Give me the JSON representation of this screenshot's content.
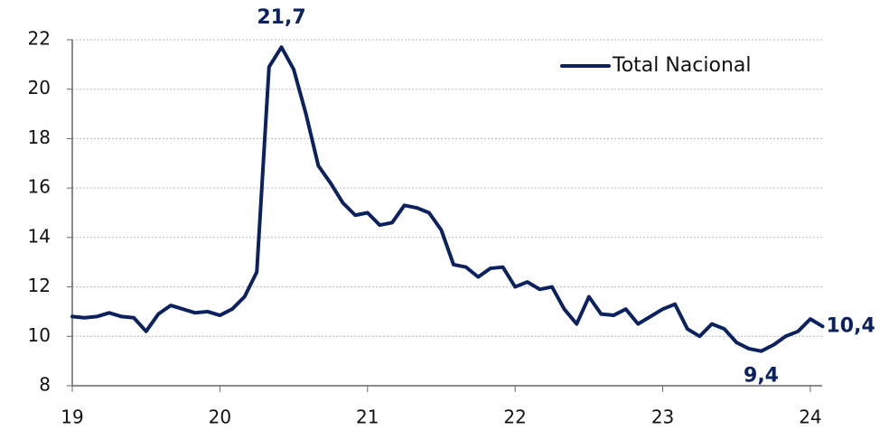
{
  "chart_data": {
    "type": "line",
    "x": [
      19,
      19.083,
      19.167,
      19.25,
      19.333,
      19.417,
      19.5,
      19.583,
      19.667,
      19.75,
      19.833,
      19.917,
      20,
      20.083,
      20.167,
      20.25,
      20.333,
      20.417,
      20.5,
      20.583,
      20.667,
      20.75,
      20.833,
      20.917,
      21,
      21.083,
      21.167,
      21.25,
      21.333,
      21.417,
      21.5,
      21.583,
      21.667,
      21.75,
      21.833,
      21.917,
      22,
      22.083,
      22.167,
      22.25,
      22.333,
      22.417,
      22.5,
      22.583,
      22.667,
      22.75,
      22.833,
      22.917,
      23,
      23.083,
      23.167,
      23.25,
      23.333,
      23.417,
      23.5,
      23.583,
      23.667,
      23.75,
      23.833,
      23.917,
      24,
      24.083
    ],
    "series": [
      {
        "name": "Total Nacional",
        "color": "#0b2160",
        "values": [
          10.8,
          10.75,
          10.8,
          10.95,
          10.8,
          10.75,
          10.2,
          10.9,
          11.25,
          11.1,
          10.95,
          11.0,
          10.85,
          11.1,
          11.6,
          12.6,
          20.9,
          21.7,
          20.8,
          19.0,
          16.9,
          16.2,
          15.4,
          14.9,
          15.0,
          14.5,
          14.6,
          15.3,
          15.2,
          15.0,
          14.3,
          12.9,
          12.8,
          12.4,
          12.75,
          12.8,
          12.0,
          12.2,
          11.9,
          12.0,
          11.1,
          10.5,
          11.6,
          10.9,
          10.85,
          11.1,
          10.5,
          10.8,
          11.1,
          11.3,
          10.3,
          10.0,
          10.5,
          10.3,
          9.75,
          9.5,
          9.4,
          9.65,
          10.0,
          10.2,
          10.7,
          10.4
        ],
        "value_labels": [
          null,
          null,
          null,
          null,
          null,
          null,
          null,
          null,
          null,
          null,
          null,
          null,
          null,
          null,
          null,
          null,
          null,
          "21,7",
          null,
          null,
          null,
          null,
          null,
          null,
          null,
          null,
          null,
          null,
          null,
          null,
          null,
          null,
          null,
          null,
          null,
          null,
          null,
          null,
          null,
          null,
          null,
          null,
          null,
          null,
          null,
          null,
          null,
          null,
          null,
          null,
          null,
          null,
          null,
          null,
          null,
          null,
          "9,4",
          null,
          null,
          null,
          null,
          "10,4"
        ]
      }
    ],
    "xlim": [
      19,
      24.08
    ],
    "xticks": [
      19,
      20,
      21,
      22,
      23,
      24
    ],
    "ylim": [
      8,
      22
    ],
    "yticks": [
      8,
      10,
      12,
      14,
      16,
      18,
      20,
      22
    ],
    "grid": true,
    "legend": "upper right"
  }
}
